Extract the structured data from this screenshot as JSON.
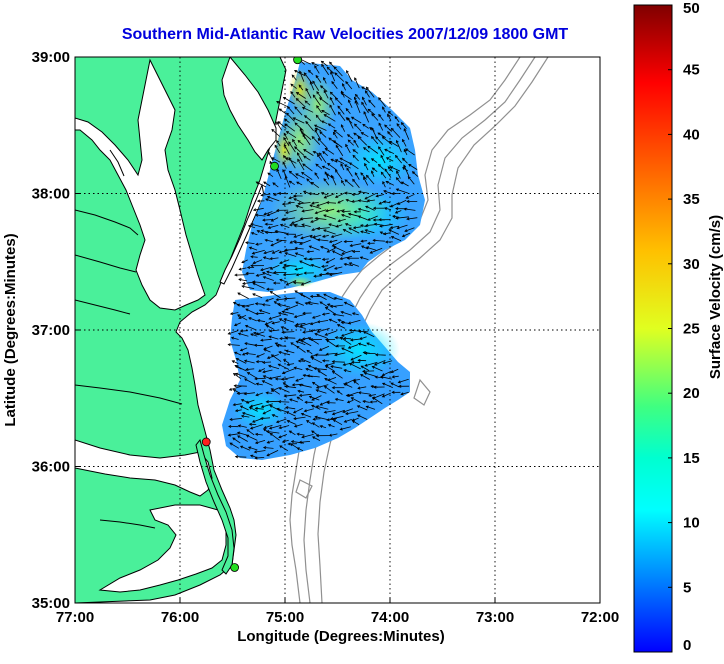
{
  "title": "Southern Mid-Atlantic Raw Velocities 2007/12/09 1800 GMT",
  "map": {
    "xlabel": "Longitude (Degrees:Minutes)",
    "ylabel": "Latitude (Degrees:Minutes)",
    "x_ticks": [
      "77:00",
      "76:00",
      "75:00",
      "74:00",
      "73:00",
      "72:00"
    ],
    "y_ticks": [
      "39:00",
      "38:00",
      "37:00",
      "36:00",
      "35:00"
    ],
    "lon_range": [
      -77,
      -72
    ],
    "lat_range": [
      35,
      39
    ],
    "colors": {
      "land": "#4af09a",
      "water": "#ffffff",
      "coastline": "#000000",
      "bathymetry": "#909090",
      "grid": "#000000",
      "title": "#0000dd",
      "vectors": "#000000"
    },
    "sites": [
      {
        "name": "site-top",
        "lon": -74.88,
        "lat": 38.98,
        "color": "#22dd22"
      },
      {
        "name": "site-cape-may",
        "lon": -75.1,
        "lat": 38.2,
        "color": "#22dd22"
      },
      {
        "name": "site-duck",
        "lon": -75.75,
        "lat": 36.18,
        "color": "#ff2020"
      },
      {
        "name": "site-hatteras",
        "lon": -75.48,
        "lat": 35.26,
        "color": "#22dd22"
      }
    ]
  },
  "colorbar": {
    "label": "Surface Velocity (cm/s)",
    "min": 0,
    "max": 50,
    "ticks": [
      "0",
      "5",
      "10",
      "15",
      "20",
      "25",
      "30",
      "35",
      "40",
      "45",
      "50"
    ],
    "colormap": "jet"
  }
}
